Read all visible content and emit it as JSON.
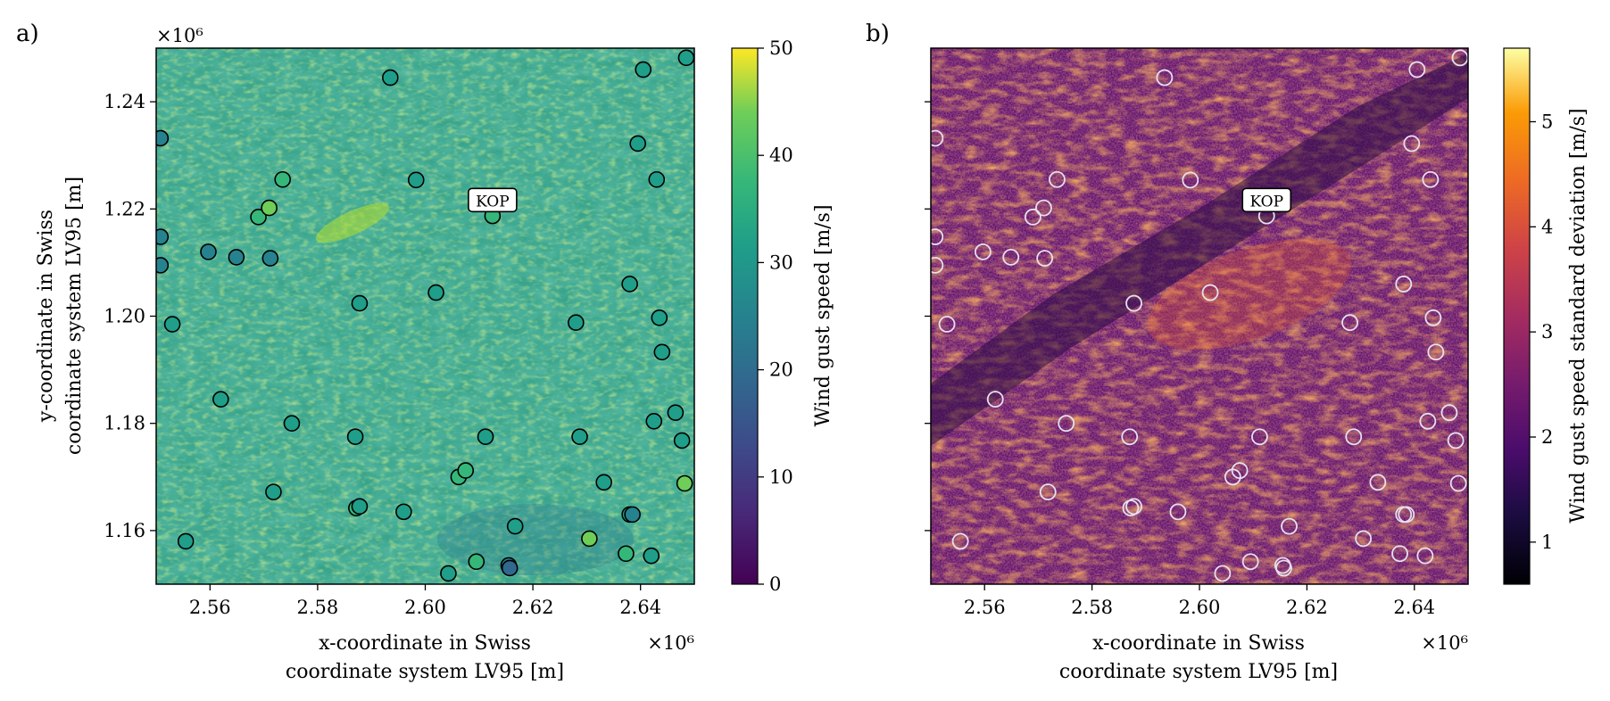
{
  "chart_data": [
    {
      "panel_label": "a)",
      "type": "heatmap",
      "xlabel_lines": [
        "x-coordinate in Swiss",
        "coordinate system LV95 [m]"
      ],
      "ylabel_lines": [
        "y-coordinate in Swiss",
        "coordinate system LV95 [m]"
      ],
      "xlim": [
        2.55,
        2.65
      ],
      "ylim": [
        1.15,
        1.25
      ],
      "x_ticks": [
        2.56,
        2.58,
        2.6,
        2.62,
        2.64
      ],
      "x_tick_labels": [
        "2.56",
        "2.58",
        "2.60",
        "2.62",
        "2.64"
      ],
      "y_ticks": [
        1.16,
        1.18,
        1.2,
        1.22,
        1.24
      ],
      "y_tick_labels": [
        "1.16",
        "1.18",
        "1.20",
        "1.22",
        "1.24"
      ],
      "x_offset_label": "×10⁶",
      "y_offset_label": "×10⁶",
      "colormap": "viridis",
      "colorbar": {
        "label": "Wind gust speed [m/s]",
        "range": [
          0,
          50
        ],
        "ticks": [
          0,
          10,
          20,
          30,
          40,
          50
        ],
        "tick_labels": [
          "0",
          "10",
          "20",
          "30",
          "40",
          "50"
        ]
      },
      "annotation": {
        "text": "KOP",
        "x": 2.6125,
        "y": 1.2215
      },
      "stations": [
        {
          "x": 2.5508,
          "y": 1.2332,
          "value": 24
        },
        {
          "x": 2.5508,
          "y": 1.2148,
          "value": 24
        },
        {
          "x": 2.5508,
          "y": 1.2095,
          "value": 24
        },
        {
          "x": 2.553,
          "y": 1.1985,
          "value": 26
        },
        {
          "x": 2.5555,
          "y": 1.158,
          "value": 27
        },
        {
          "x": 2.5597,
          "y": 1.212,
          "value": 22
        },
        {
          "x": 2.562,
          "y": 1.1845,
          "value": 30
        },
        {
          "x": 2.5649,
          "y": 1.211,
          "value": 24
        },
        {
          "x": 2.569,
          "y": 1.2185,
          "value": 36
        },
        {
          "x": 2.571,
          "y": 1.2202,
          "value": 38
        },
        {
          "x": 2.5712,
          "y": 1.2108,
          "value": 24
        },
        {
          "x": 2.5718,
          "y": 1.1672,
          "value": 28
        },
        {
          "x": 2.5735,
          "y": 1.2255,
          "value": 32
        },
        {
          "x": 2.5752,
          "y": 1.18,
          "value": 30
        },
        {
          "x": 2.587,
          "y": 1.1775,
          "value": 27
        },
        {
          "x": 2.5872,
          "y": 1.1642,
          "value": 33
        },
        {
          "x": 2.5878,
          "y": 1.1645,
          "value": 30
        },
        {
          "x": 2.5878,
          "y": 1.2024,
          "value": 30
        },
        {
          "x": 2.5935,
          "y": 1.2445,
          "value": 25
        },
        {
          "x": 2.596,
          "y": 1.1635,
          "value": 26
        },
        {
          "x": 2.5983,
          "y": 1.2254,
          "value": 30
        },
        {
          "x": 2.602,
          "y": 1.2044,
          "value": 27
        },
        {
          "x": 2.6043,
          "y": 1.152,
          "value": 30
        },
        {
          "x": 2.6062,
          "y": 1.17,
          "value": 33
        },
        {
          "x": 2.6075,
          "y": 1.1712,
          "value": 36
        },
        {
          "x": 2.6095,
          "y": 1.1542,
          "value": 36
        },
        {
          "x": 2.6112,
          "y": 1.1775,
          "value": 30
        },
        {
          "x": 2.6125,
          "y": 1.2187,
          "value": 34
        },
        {
          "x": 2.6155,
          "y": 1.1535,
          "value": 20
        },
        {
          "x": 2.6157,
          "y": 1.153,
          "value": 14
        },
        {
          "x": 2.6167,
          "y": 1.1608,
          "value": 28
        },
        {
          "x": 2.628,
          "y": 1.1988,
          "value": 27
        },
        {
          "x": 2.6287,
          "y": 1.1775,
          "value": 30
        },
        {
          "x": 2.6305,
          "y": 1.1585,
          "value": 37
        },
        {
          "x": 2.6332,
          "y": 1.169,
          "value": 28
        },
        {
          "x": 2.6373,
          "y": 1.1557,
          "value": 32
        },
        {
          "x": 2.638,
          "y": 1.163,
          "value": 27
        },
        {
          "x": 2.6385,
          "y": 1.163,
          "value": 24
        },
        {
          "x": 2.638,
          "y": 1.206,
          "value": 27
        },
        {
          "x": 2.6395,
          "y": 1.2322,
          "value": 27
        },
        {
          "x": 2.6405,
          "y": 1.246,
          "value": 27
        },
        {
          "x": 2.642,
          "y": 1.1553,
          "value": 30
        },
        {
          "x": 2.6425,
          "y": 1.1804,
          "value": 27
        },
        {
          "x": 2.643,
          "y": 1.2255,
          "value": 30
        },
        {
          "x": 2.6435,
          "y": 1.1997,
          "value": 27
        },
        {
          "x": 2.644,
          "y": 1.1933,
          "value": 27
        },
        {
          "x": 2.6465,
          "y": 1.182,
          "value": 30
        },
        {
          "x": 2.6477,
          "y": 1.1768,
          "value": 25
        },
        {
          "x": 2.6482,
          "y": 1.1688,
          "value": 37
        },
        {
          "x": 2.6485,
          "y": 1.2482,
          "value": 25
        }
      ]
    },
    {
      "panel_label": "b)",
      "type": "heatmap",
      "xlabel_lines": [
        "x-coordinate in Swiss",
        "coordinate system LV95 [m]"
      ],
      "xlim": [
        2.55,
        2.65
      ],
      "ylim": [
        1.15,
        1.25
      ],
      "x_ticks": [
        2.56,
        2.58,
        2.6,
        2.62,
        2.64
      ],
      "x_tick_labels": [
        "2.56",
        "2.58",
        "2.60",
        "2.62",
        "2.64"
      ],
      "x_offset_label": "×10⁶",
      "colormap": "inferno",
      "colorbar": {
        "label": "Wind gust speed standard deviation [m/s]",
        "range": [
          0.6,
          5.7
        ],
        "ticks": [
          1,
          2,
          3,
          4,
          5
        ],
        "tick_labels": [
          "1",
          "2",
          "3",
          "4",
          "5"
        ]
      },
      "annotation": {
        "text": "KOP",
        "x": 2.6125,
        "y": 1.2215
      },
      "stations_same_as_panel": "a)"
    }
  ]
}
